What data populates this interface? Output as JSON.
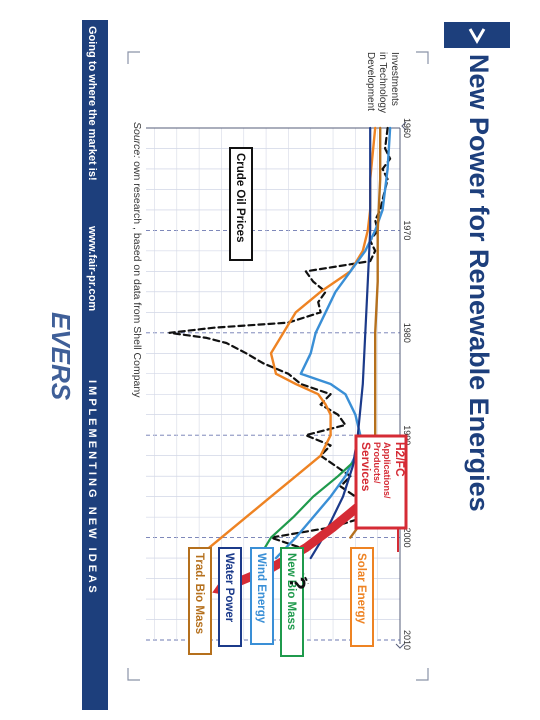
{
  "header": {
    "title": "New Power for Renewable Energies",
    "chevron_icon": "chevron-right-icon"
  },
  "footer": {
    "tagline": "Going to where the market is!",
    "url": "www.fair-pr.com",
    "slogan": "I M P L E M E N T I N G   N E W   I D E A S",
    "logo_text": "EVERS"
  },
  "source_note": {
    "prefix": "Source:",
    "text": " own research , based on data from Shell Company"
  },
  "colors": {
    "brand_blue": "#1d3f7c",
    "red": "#d52b35",
    "orange": "#ee8323",
    "blue": "#3a8fd6",
    "green": "#1f9a4c",
    "navy": "#1b3a8a",
    "brown": "#b5701d",
    "black": "#111111"
  },
  "chart_data": {
    "type": "line",
    "x_ticks": [
      "1960",
      "1970",
      "1980",
      "1990",
      "2000",
      "2010"
    ],
    "xlim": [
      1960,
      2010
    ],
    "ylim": [
      0,
      100
    ],
    "ylabel": "Investments in Technology Development",
    "grid": true,
    "series": [
      {
        "name": "Crude Oil Prices",
        "key": "crude",
        "style": "dashed",
        "color": "#111111",
        "points": [
          [
            1960,
            5
          ],
          [
            1962,
            6
          ],
          [
            1963,
            4
          ],
          [
            1964,
            7
          ],
          [
            1965,
            5
          ],
          [
            1966,
            6
          ],
          [
            1968,
            8
          ],
          [
            1969,
            10
          ],
          [
            1970,
            9
          ],
          [
            1971,
            12
          ],
          [
            1972,
            10
          ],
          [
            1973,
            12
          ],
          [
            1974,
            38
          ],
          [
            1975,
            35
          ],
          [
            1976,
            30
          ],
          [
            1977,
            33
          ],
          [
            1978,
            32
          ],
          [
            1979,
            45
          ],
          [
            1979.5,
            75
          ],
          [
            1980,
            93
          ],
          [
            1980.5,
            78
          ],
          [
            1981,
            70
          ],
          [
            1982,
            62
          ],
          [
            1983,
            55
          ],
          [
            1984,
            45
          ],
          [
            1985,
            40
          ],
          [
            1986,
            28
          ],
          [
            1987,
            32
          ],
          [
            1988,
            25
          ],
          [
            1989,
            22
          ],
          [
            1990,
            38
          ],
          [
            1991,
            28
          ],
          [
            1992,
            32
          ],
          [
            1993,
            26
          ],
          [
            1994,
            20
          ],
          [
            1995,
            24
          ],
          [
            1996,
            18
          ],
          [
            1997,
            16
          ],
          [
            1998,
            14
          ],
          [
            1999,
            28
          ],
          [
            2000,
            52
          ],
          [
            2001,
            40
          ],
          [
            2002,
            44
          ],
          [
            2003,
            48
          ]
        ]
      },
      {
        "name": "Solar Energy",
        "key": "solar",
        "color": "#ee8323",
        "points": [
          [
            1960,
            10
          ],
          [
            1965,
            12
          ],
          [
            1968,
            12
          ],
          [
            1970,
            13
          ],
          [
            1972,
            15
          ],
          [
            1974,
            20
          ],
          [
            1976,
            32
          ],
          [
            1978,
            42
          ],
          [
            1980,
            47
          ],
          [
            1982,
            52
          ],
          [
            1984,
            50
          ],
          [
            1985,
            42
          ],
          [
            1986,
            33
          ],
          [
            1987,
            30
          ],
          [
            1988,
            28
          ],
          [
            1990,
            28
          ],
          [
            1992,
            32
          ],
          [
            1994,
            42
          ],
          [
            1996,
            52
          ],
          [
            1998,
            62
          ],
          [
            2000,
            72
          ],
          [
            2002,
            82
          ]
        ]
      },
      {
        "name": "Wind Energy",
        "key": "wind",
        "color": "#3a8fd6",
        "points": [
          [
            1960,
            4
          ],
          [
            1964,
            5
          ],
          [
            1968,
            7
          ],
          [
            1970,
            10
          ],
          [
            1972,
            14
          ],
          [
            1974,
            20
          ],
          [
            1976,
            26
          ],
          [
            1978,
            30
          ],
          [
            1980,
            34
          ],
          [
            1982,
            36
          ],
          [
            1984,
            40
          ],
          [
            1985,
            28
          ],
          [
            1986,
            22
          ],
          [
            1988,
            18
          ],
          [
            1990,
            16
          ],
          [
            1992,
            18
          ],
          [
            1994,
            22
          ],
          [
            1996,
            28
          ],
          [
            1998,
            35
          ],
          [
            2000,
            42
          ],
          [
            2002,
            50
          ]
        ]
      },
      {
        "name": "New Bio Mass",
        "key": "newbio",
        "color": "#1f9a4c",
        "points": [
          [
            1990,
            10
          ],
          [
            1992,
            16
          ],
          [
            1994,
            25
          ],
          [
            1996,
            35
          ],
          [
            1998,
            43
          ],
          [
            2000,
            52
          ],
          [
            2002,
            57
          ]
        ]
      },
      {
        "name": "Water Power",
        "key": "water",
        "color": "#1b3a8a",
        "points": [
          [
            1960,
            12
          ],
          [
            1965,
            12
          ],
          [
            1970,
            12
          ],
          [
            1975,
            13
          ],
          [
            1980,
            14
          ],
          [
            1985,
            15
          ],
          [
            1990,
            17
          ],
          [
            1993,
            19
          ],
          [
            1996,
            23
          ],
          [
            1998,
            27
          ],
          [
            2000,
            31
          ],
          [
            2002,
            36
          ]
        ]
      },
      {
        "name": "Trad. Bio Mass",
        "key": "tradbio",
        "color": "#b5701d",
        "points": [
          [
            1960,
            8
          ],
          [
            1965,
            8
          ],
          [
            1970,
            9
          ],
          [
            1975,
            9
          ],
          [
            1980,
            10
          ],
          [
            1985,
            10
          ],
          [
            1990,
            10
          ],
          [
            1993,
            10
          ],
          [
            1996,
            12
          ],
          [
            1998,
            14
          ],
          [
            1999,
            17
          ],
          [
            2000,
            20
          ]
        ]
      },
      {
        "name": "H2/FC Applications/ Products/ Services",
        "key": "h2",
        "style": "arrow",
        "color": "#d52b35",
        "points": [
          [
            1993,
            0
          ],
          [
            1995,
            8
          ],
          [
            1997,
            17
          ],
          [
            1999,
            27
          ],
          [
            2001,
            38
          ],
          [
            2003,
            52
          ],
          [
            2005,
            72
          ]
        ]
      }
    ],
    "labels": {
      "crude": "Crude Oil Prices",
      "solar": "Solar Energy",
      "wind": "Wind Energy",
      "newbio": "New Bio Mass",
      "water": "Water Power",
      "tradbio": "Trad. Bio Mass",
      "h2_line1": "H2/FC",
      "h2_line2": "Applications/",
      "h2_line3": "Products/",
      "h2_line4": "Services",
      "question": "?"
    }
  }
}
